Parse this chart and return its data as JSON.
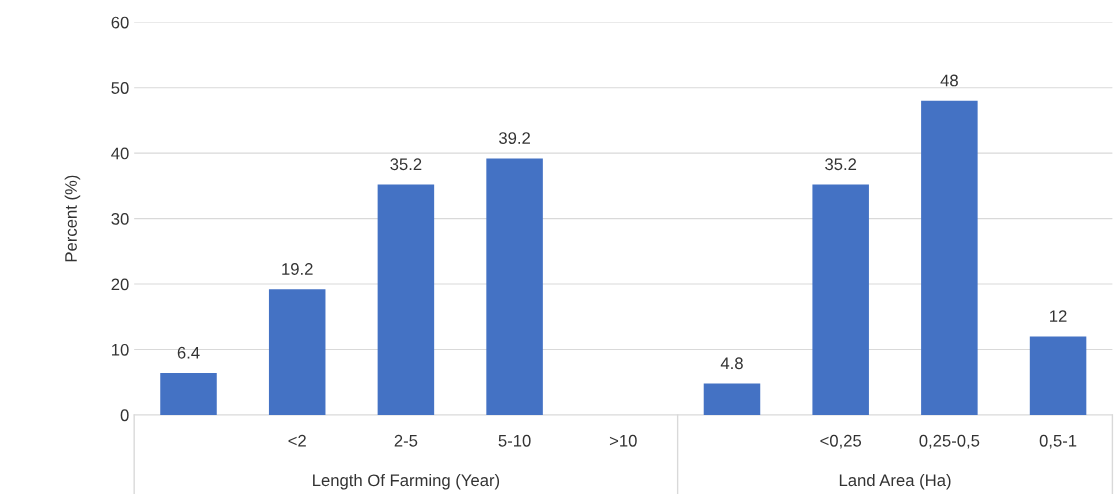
{
  "chart_data": {
    "type": "bar",
    "ylabel": "Percent (%)",
    "categories": [
      null,
      "<2",
      "2-5",
      "5-10",
      ">10",
      null,
      "<0,25",
      "0,25-0,5",
      "0,5-1"
    ],
    "values": [
      6.4,
      19.2,
      35.2,
      39.2,
      null,
      4.8,
      35.2,
      48,
      12
    ],
    "color": "#4472c4",
    "ylim": [
      0,
      60
    ],
    "yticks": [
      0,
      10,
      20,
      30,
      40,
      50,
      60
    ],
    "grid": "y",
    "data_labels": true,
    "annotations": [
      "Length Of Farming (Year)",
      "Land Area (Ha)"
    ]
  }
}
